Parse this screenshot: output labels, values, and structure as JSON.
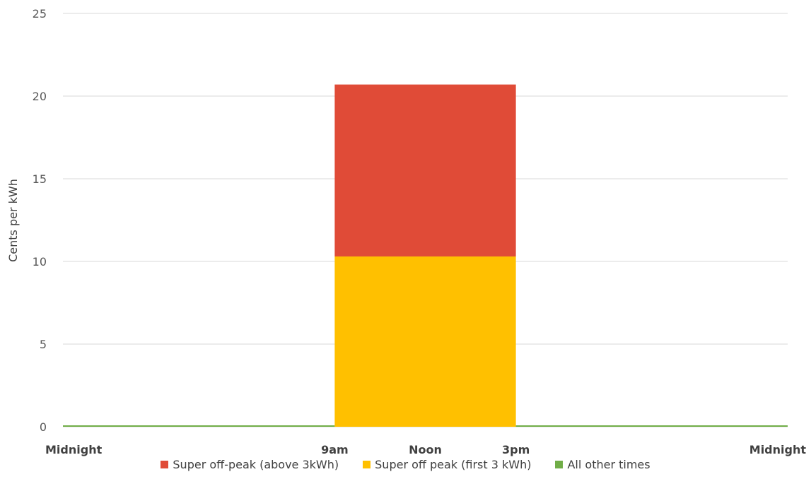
{
  "chart_data": {
    "type": "bar",
    "title": "",
    "xlabel": "",
    "ylabel": "Cents per kWh",
    "ylim": [
      0,
      25
    ],
    "yticks": [
      0,
      5,
      10,
      15,
      20,
      25
    ],
    "x_range_hours": [
      0,
      24
    ],
    "xtick_labels": [
      {
        "hour": 0,
        "label": "Midnight"
      },
      {
        "hour": 9,
        "label": "9am"
      },
      {
        "hour": 12,
        "label": "Noon"
      },
      {
        "hour": 15,
        "label": "3pm"
      },
      {
        "hour": 24,
        "label": "Midnight"
      }
    ],
    "grid": true,
    "legend_position": "bottom",
    "series": [
      {
        "name": "Super off-peak (above 3kWh)",
        "color": "#e04b37",
        "start_hour": 9,
        "end_hour": 15,
        "base": 10.3,
        "value": 20.7
      },
      {
        "name": "Super off peak (first 3 kWh)",
        "color": "#ffc000",
        "start_hour": 9,
        "end_hour": 15,
        "base": 0,
        "value": 10.3
      },
      {
        "name": "All other times",
        "color": "#70ad47",
        "segments": [
          [
            0,
            9
          ],
          [
            15,
            24
          ]
        ],
        "value": 0
      }
    ]
  }
}
